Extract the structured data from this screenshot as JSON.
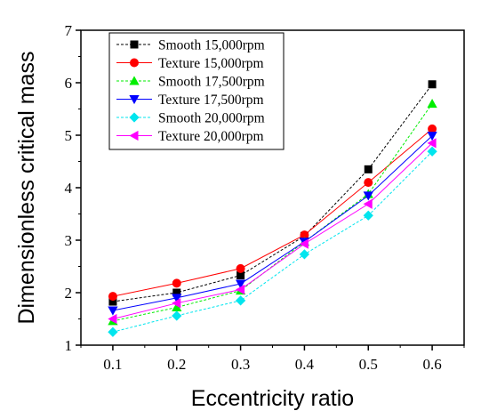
{
  "chart_data": {
    "type": "line",
    "xlabel": "Eccentricity ratio",
    "ylabel": "Dimensionless critical mass",
    "xlim": [
      0.05,
      0.65
    ],
    "ylim": [
      1,
      7
    ],
    "x": [
      0.1,
      0.2,
      0.3,
      0.4,
      0.5,
      0.6
    ],
    "x_tick_labels": [
      "0.1",
      "0.2",
      "0.3",
      "0.4",
      "0.5",
      "0.6"
    ],
    "y_ticks": [
      1,
      2,
      3,
      4,
      5,
      6,
      7
    ],
    "y_tick_labels": [
      "1",
      "2",
      "3",
      "4",
      "5",
      "6",
      "7"
    ],
    "grid": false,
    "legend_position": "top-left",
    "series": [
      {
        "name": "Smooth 15,000rpm",
        "color": "#000000",
        "marker": "square",
        "line": "dashed",
        "values": [
          1.83,
          2.0,
          2.33,
          3.08,
          4.35,
          5.97
        ]
      },
      {
        "name": "Texture 15,000rpm",
        "color": "#ff0000",
        "marker": "circle",
        "line": "solid",
        "values": [
          1.93,
          2.18,
          2.46,
          3.1,
          4.1,
          5.12
        ]
      },
      {
        "name": "Smooth 17,500rpm",
        "color": "#00ee00",
        "marker": "triangle-up",
        "line": "dashed",
        "values": [
          1.46,
          1.72,
          2.04,
          2.97,
          3.88,
          5.6
        ]
      },
      {
        "name": "Texture 17,500rpm",
        "color": "#0000ff",
        "marker": "triangle-down",
        "line": "solid",
        "values": [
          1.66,
          1.9,
          2.17,
          2.97,
          3.85,
          4.99
        ]
      },
      {
        "name": "Smooth 20,000rpm",
        "color": "#00e5ee",
        "marker": "diamond",
        "line": "dashed",
        "values": [
          1.25,
          1.56,
          1.85,
          2.73,
          3.47,
          4.69
        ]
      },
      {
        "name": "Texture 20,000rpm",
        "color": "#ff00ff",
        "marker": "triangle-left",
        "line": "solid",
        "values": [
          1.5,
          1.8,
          2.06,
          2.93,
          3.69,
          4.85
        ]
      }
    ]
  }
}
